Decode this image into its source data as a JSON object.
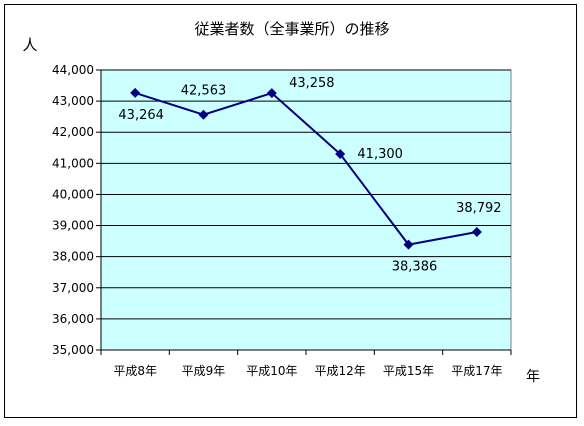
{
  "chart_data": {
    "type": "line",
    "title": "従業者数（全事業所）の推移",
    "ylabel": "人",
    "xlabel": "年",
    "categories": [
      "平成8年",
      "平成9年",
      "平成10年",
      "平成12年",
      "平成15年",
      "平成17年"
    ],
    "series": [
      {
        "values": [
          43264,
          42563,
          43258,
          41300,
          38386,
          38792
        ]
      }
    ],
    "data_labels": [
      "43,264",
      "42,563",
      "43,258",
      "41,300",
      "38,386",
      "38,792"
    ],
    "ylim": [
      35000,
      44000
    ],
    "yticks": [
      35000,
      36000,
      37000,
      38000,
      39000,
      40000,
      41000,
      42000,
      43000,
      44000
    ],
    "ytick_labels": [
      "35,000",
      "36,000",
      "37,000",
      "38,000",
      "39,000",
      "40,000",
      "41,000",
      "42,000",
      "43,000",
      "44,000"
    ],
    "grid": true,
    "colors": {
      "plot_background": "#ccffff",
      "line": "#000080",
      "grid": "#000000"
    }
  }
}
